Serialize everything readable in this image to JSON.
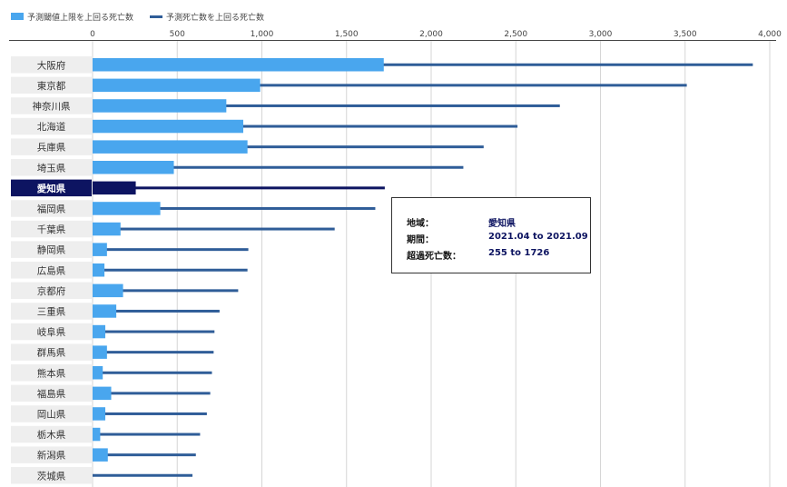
{
  "legend": [
    {
      "label": "予測閾値上限を上回る死亡数",
      "color": "#49a6ee",
      "kind": "box"
    },
    {
      "label": "予測死亡数を上回る死亡数",
      "color": "#2f5d98",
      "kind": "line"
    }
  ],
  "tooltip": {
    "region_key": "地域：",
    "region_value": "愛知県",
    "period_key": "期間：",
    "period_value": "2021.04 to 2021.09",
    "excess_key": "超過死亡数：",
    "excess_value": "255 to 1726"
  },
  "colors": {
    "bar": "#49a6ee",
    "line": "#2f5d98",
    "highlight": "#0d1461",
    "label_bg": "#eeeeee",
    "grid": "#d6d6d6"
  },
  "chart_data": {
    "type": "bar",
    "orientation": "horizontal",
    "xlim": [
      0,
      4000
    ],
    "x_ticks": [
      "0",
      "500",
      "1,000",
      "1,500",
      "2,000",
      "2,500",
      "3,000",
      "3,500",
      "4,000"
    ],
    "highlighted_category": "愛知県",
    "categories": [
      "大阪府",
      "東京都",
      "神奈川県",
      "北海道",
      "兵庫県",
      "埼玉県",
      "愛知県",
      "福岡県",
      "千葉県",
      "静岡県",
      "広島県",
      "京都府",
      "三重県",
      "岐阜県",
      "群馬県",
      "熊本県",
      "福島県",
      "岡山県",
      "栃木県",
      "新潟県",
      "茨城県"
    ],
    "series": [
      {
        "name": "予測閾値上限を上回る死亡数",
        "values": [
          1720,
          990,
          790,
          890,
          915,
          480,
          255,
          400,
          165,
          85,
          70,
          180,
          140,
          75,
          85,
          60,
          110,
          75,
          45,
          90,
          0
        ]
      },
      {
        "name": "予測死亡数を上回る死亡数",
        "values": [
          3900,
          3510,
          2760,
          2510,
          2310,
          2190,
          1726,
          1670,
          1430,
          920,
          915,
          860,
          750,
          720,
          715,
          705,
          695,
          675,
          635,
          610,
          590
        ]
      }
    ]
  }
}
